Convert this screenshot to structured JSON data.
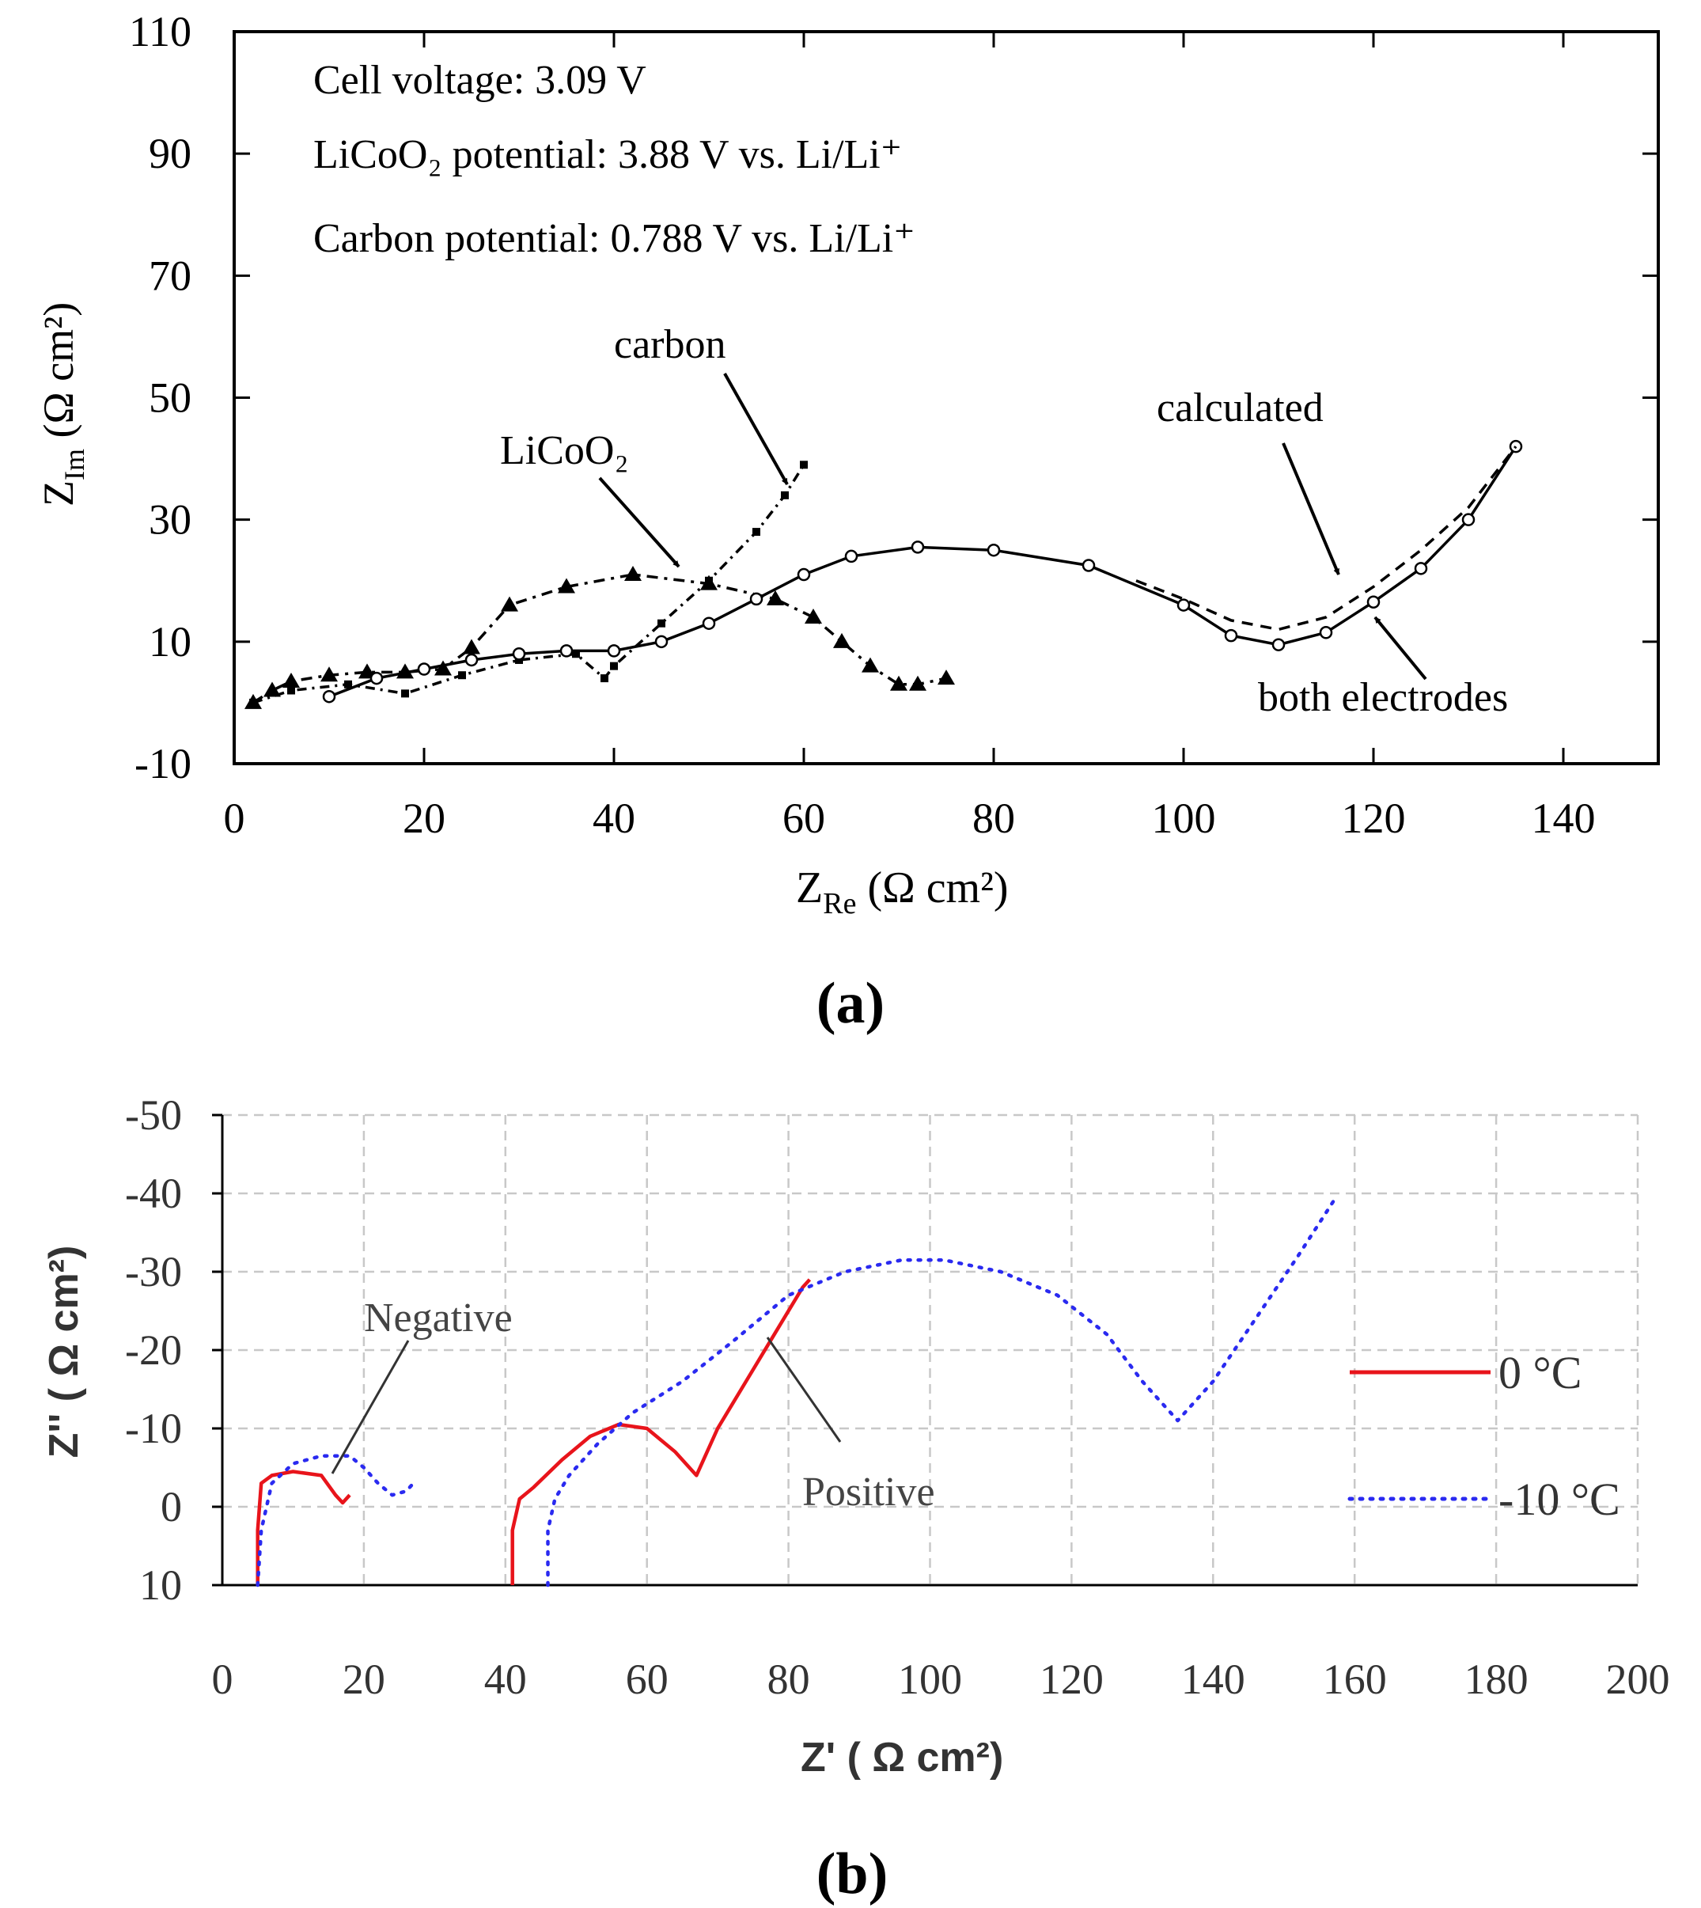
{
  "panel_a": {
    "label": "a",
    "chart_data": {
      "type": "line",
      "title": "",
      "xlabel": {
        "main": "Z",
        "sub": "Re",
        "units": "(Ω cm²)"
      },
      "ylabel": {
        "main": "Z",
        "sub": "Im",
        "units": "(Ω cm²)"
      },
      "xlim": [
        0,
        150
      ],
      "ylim": [
        -10,
        110
      ],
      "xticks": [
        0,
        20,
        40,
        60,
        80,
        100,
        120,
        140
      ],
      "yticks": [
        -10,
        10,
        30,
        50,
        70,
        90,
        110
      ],
      "info_lines": [
        "Cell voltage: 3.09 V",
        "LiCoO₂ potential: 3.88 V vs. Li/Li⁺",
        "Carbon potential: 0.788 V vs. Li/Li⁺"
      ],
      "annotations": {
        "carbon": "carbon",
        "licoo2": "LiCoO₂",
        "calculated": "calculated",
        "both": "both electrodes"
      },
      "series": [
        {
          "name": "LiCoO2",
          "style": "dash-dot with triangles",
          "x": [
            2,
            4,
            6,
            10,
            14,
            18,
            22,
            25,
            29,
            35,
            42,
            50,
            57,
            61,
            64,
            67,
            70,
            72,
            75
          ],
          "y": [
            0,
            2,
            3.5,
            4.5,
            5,
            5,
            5.5,
            9,
            16,
            19,
            21,
            19.5,
            17,
            14,
            10,
            6,
            3,
            3,
            4
          ]
        },
        {
          "name": "carbon",
          "style": "dash-dot with small squares",
          "x": [
            2,
            6,
            12,
            18,
            24,
            30,
            36,
            39,
            40,
            45,
            50,
            55,
            58,
            60
          ],
          "y": [
            0,
            2,
            3,
            1.5,
            4.5,
            7,
            8,
            4,
            6,
            13,
            20,
            28,
            34,
            39
          ]
        },
        {
          "name": "both electrodes",
          "style": "solid with open circles",
          "x": [
            10,
            15,
            20,
            25,
            30,
            35,
            40,
            45,
            50,
            55,
            60,
            65,
            72,
            80,
            90,
            100,
            105,
            110,
            115,
            120,
            125,
            130,
            135
          ],
          "y": [
            1,
            4,
            5.5,
            7,
            8,
            8.5,
            8.5,
            10,
            13,
            17,
            21,
            24,
            25.5,
            25,
            22.5,
            16,
            11,
            9.5,
            11.5,
            16.5,
            22,
            30,
            42
          ]
        },
        {
          "name": "calculated",
          "style": "dashed",
          "x": [
            95,
            100,
            105,
            110,
            115,
            120,
            125,
            130,
            135
          ],
          "y": [
            20,
            17,
            13.5,
            12,
            14,
            19,
            25,
            32,
            42
          ]
        }
      ]
    }
  },
  "panel_b": {
    "label": "b",
    "chart_data": {
      "type": "line",
      "title": "",
      "xlabel": "Z' ( Ω cm²)",
      "ylabel": "Z'' ( Ω cm²)",
      "xlim": [
        0,
        200
      ],
      "ylim": [
        10,
        -50
      ],
      "xticks": [
        0,
        20,
        40,
        60,
        80,
        100,
        120,
        140,
        160,
        180,
        200
      ],
      "yticks": [
        -50,
        -40,
        -30,
        -20,
        -10,
        0,
        10
      ],
      "ytick_labels": [
        "-50",
        "-40",
        "-30",
        "-20",
        "-10",
        "0",
        "10"
      ],
      "grid": true,
      "annotations": {
        "negative": "Negative",
        "positive": "Positive"
      },
      "legend": [
        {
          "label": "0 °C",
          "color": "#e8141b",
          "style": "solid"
        },
        {
          "label": "-10 °C",
          "color": "#2a2af0",
          "style": "dotted"
        }
      ],
      "series": [
        {
          "name": "0 °C",
          "color": "#e8141b",
          "x": [
            5,
            5,
            5.5,
            7,
            10,
            14,
            16,
            17,
            18,
            null,
            41,
            41,
            42,
            44,
            48,
            52,
            56,
            60,
            64,
            67,
            70,
            74,
            78,
            82,
            83
          ],
          "y": [
            10,
            3,
            -3,
            -4,
            -4.5,
            -4,
            -1.5,
            -0.5,
            -1.5,
            null,
            10,
            3,
            -1,
            -2.5,
            -6,
            -9,
            -10.5,
            -10,
            -7,
            -4,
            -10,
            -16,
            -22,
            -28,
            -29
          ]
        },
        {
          "name": "-10 °C",
          "color": "#2a2af0",
          "x": [
            5,
            5.5,
            7,
            10,
            14,
            18,
            20,
            22,
            24,
            26,
            27,
            null,
            46,
            46,
            47,
            49,
            53,
            58,
            65,
            72,
            80,
            88,
            96,
            102,
            110,
            118,
            125,
            130,
            135,
            140,
            146,
            152,
            157
          ],
          "y": [
            10,
            3,
            -3,
            -5.5,
            -6.5,
            -6.5,
            -5,
            -3,
            -1.5,
            -2,
            -3,
            null,
            10,
            3,
            -1,
            -4,
            -8,
            -12,
            -16,
            -21,
            -27,
            -30,
            -31.5,
            -31.5,
            -30,
            -27,
            -22,
            -16,
            -11,
            -16,
            -24,
            -32,
            -39
          ]
        }
      ]
    }
  }
}
